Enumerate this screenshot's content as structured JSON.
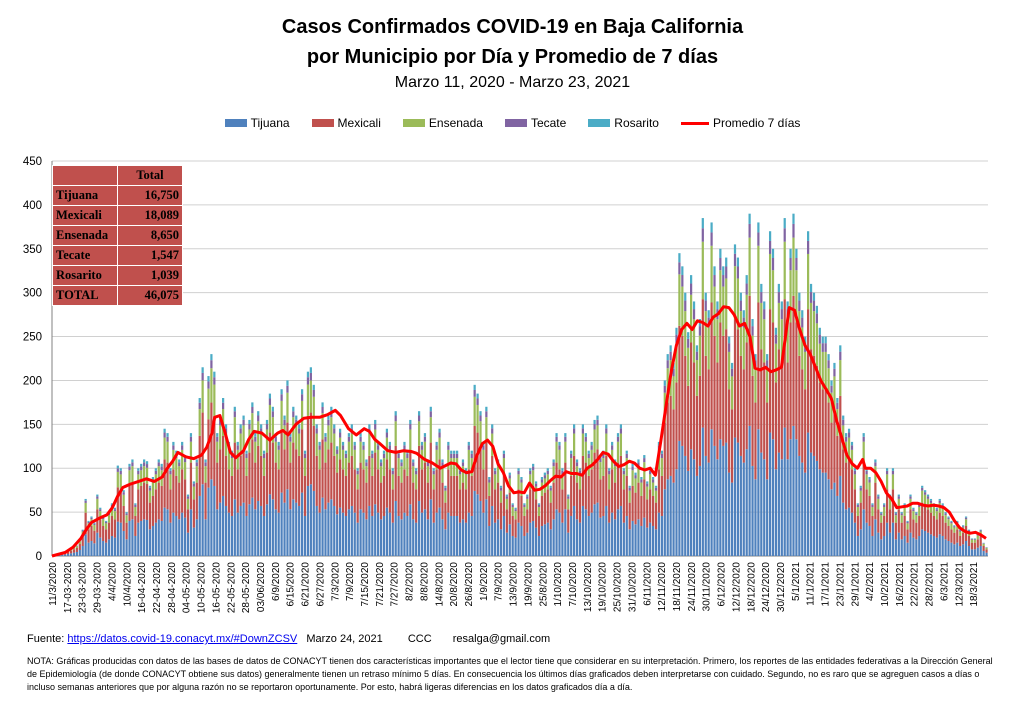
{
  "chart_data": {
    "type": "bar",
    "title_line1": "Casos Confirmados COVID-19 en Baja California",
    "title_line2": "por Municipio por Día y Promedio de 7 días",
    "subtitle": "Marzo 11, 2020  - Marzo 23, 2021",
    "ylim": [
      0,
      450
    ],
    "yticks": [
      "0",
      "50",
      "100",
      "150",
      "200",
      "250",
      "300",
      "350",
      "400",
      "450"
    ],
    "grid": true,
    "legend_position": "top",
    "series": [
      {
        "name": "Tijuana",
        "color": "#4f81bd"
      },
      {
        "name": "Mexicali",
        "color": "#c0504d"
      },
      {
        "name": "Ensenada",
        "color": "#9bbb59"
      },
      {
        "name": "Tecate",
        "color": "#8064a2"
      },
      {
        "name": "Rosarito",
        "color": "#4bacc6"
      },
      {
        "name": "Promedio 7 días",
        "color": "#ff0000",
        "type": "line"
      }
    ],
    "x_tick_labels": [
      "11/3/2020",
      "17-03-2020",
      "23-03-2020",
      "29-03-2020",
      "4/4/2020",
      "10/4/2020",
      "16-04-2020",
      "22-04-2020",
      "28-04-2020",
      "04-05-2020",
      "10-05-2020",
      "16-05-2020",
      "22-05-2020",
      "28-05-2020",
      "03/06/2020",
      "6/9/2020",
      "6/15/2020",
      "6/21/2020",
      "6/27/2020",
      "7/3/2020",
      "7/9/2020",
      "7/15/2020",
      "7/21/2020",
      "7/27/2020",
      "8/2/2020",
      "8/8/2020",
      "14/8/2020",
      "20/8/2020",
      "26/8/2020",
      "1/9/2020",
      "7/9/2020",
      "13/9/2020",
      "19/9/2020",
      "25/8/2020",
      "1/10/2020",
      "7/10/2020",
      "13/10/2020",
      "19/10/2020",
      "25/10/2020",
      "31/10/2020",
      "6/11/2020",
      "12/11/2020",
      "18/11/2020",
      "24/11/2020",
      "30/11/2020",
      "6/12/2020",
      "12/12/2020",
      "18/12/2020",
      "24/12/2020",
      "30/12/2020",
      "5/1/2021",
      "11/1/2021",
      "17/1/2021",
      "23/1/2021",
      "29/1/2021",
      "4/2/2021",
      "10/2/2021",
      "16/2/2021",
      "22/2/2021",
      "28/2/2021",
      "6/3/2021",
      "12/3/2021",
      "18/3/2021"
    ],
    "daily_totals": [
      0,
      2,
      3,
      4,
      5,
      6,
      8,
      10,
      12,
      18,
      30,
      65,
      40,
      45,
      38,
      70,
      55,
      45,
      40,
      50,
      60,
      55,
      103,
      100,
      75,
      50,
      105,
      110,
      60,
      100,
      105,
      110,
      108,
      80,
      90,
      100,
      110,
      105,
      145,
      140,
      100,
      130,
      120,
      110,
      130,
      115,
      70,
      140,
      85,
      110,
      180,
      215,
      110,
      205,
      230,
      210,
      140,
      160,
      180,
      150,
      130,
      120,
      170,
      130,
      150,
      160,
      120,
      155,
      175,
      140,
      165,
      150,
      120,
      155,
      185,
      170,
      140,
      130,
      190,
      160,
      200,
      140,
      170,
      160,
      150,
      190,
      120,
      210,
      215,
      195,
      150,
      130,
      175,
      140,
      160,
      170,
      150,
      125,
      145,
      130,
      120,
      140,
      150,
      130,
      100,
      140,
      130,
      110,
      150,
      120,
      155,
      130,
      110,
      120,
      145,
      130,
      100,
      165,
      120,
      110,
      130,
      120,
      155,
      110,
      100,
      165,
      130,
      140,
      110,
      170,
      100,
      130,
      145,
      110,
      80,
      130,
      120,
      120,
      120,
      100,
      110,
      100,
      130,
      120,
      195,
      185,
      165,
      130,
      170,
      90,
      150,
      100,
      110,
      80,
      120,
      70,
      95,
      60,
      55,
      100,
      90,
      60,
      70,
      100,
      105,
      85,
      60,
      90,
      95,
      100,
      80,
      110,
      140,
      130,
      100,
      140,
      70,
      120,
      150,
      110,
      100,
      150,
      140,
      120,
      130,
      155,
      160,
      115,
      120,
      150,
      100,
      130,
      110,
      140,
      150,
      100,
      120,
      80,
      105,
      95,
      110,
      90,
      115,
      85,
      100,
      90,
      80,
      130,
      120,
      200,
      230,
      240,
      220,
      260,
      345,
      330,
      300,
      255,
      320,
      290,
      240,
      270,
      385,
      300,
      280,
      380,
      330,
      290,
      350,
      330,
      340,
      250,
      220,
      355,
      340,
      300,
      280,
      320,
      390,
      270,
      230,
      380,
      310,
      290,
      230,
      370,
      350,
      260,
      310,
      290,
      385,
      290,
      350,
      390,
      350,
      300,
      280,
      250,
      370,
      310,
      300,
      285,
      260,
      250,
      250,
      230,
      200,
      220,
      180,
      240,
      160,
      140,
      145,
      130,
      100,
      60,
      80,
      140,
      100,
      90,
      60,
      110,
      70,
      50,
      60,
      100,
      70,
      100,
      50,
      70,
      50,
      60,
      40,
      70,
      55,
      50,
      60,
      80,
      75,
      70,
      65,
      60,
      55,
      65,
      60,
      50,
      45,
      40,
      35,
      40,
      30,
      35,
      45,
      30,
      20,
      20,
      25,
      30,
      15,
      10
    ],
    "rolling_avg_points": [
      [
        0,
        0
      ],
      [
        10,
        4
      ],
      [
        16,
        10
      ],
      [
        22,
        20
      ],
      [
        26,
        30
      ],
      [
        30,
        38
      ],
      [
        36,
        43
      ],
      [
        42,
        47
      ],
      [
        46,
        55
      ],
      [
        50,
        68
      ],
      [
        54,
        78
      ],
      [
        60,
        82
      ],
      [
        66,
        85
      ],
      [
        72,
        88
      ],
      [
        78,
        85
      ],
      [
        84,
        90
      ],
      [
        88,
        100
      ],
      [
        92,
        108
      ],
      [
        96,
        118
      ],
      [
        102,
        113
      ],
      [
        108,
        111
      ],
      [
        114,
        115
      ],
      [
        118,
        124
      ],
      [
        122,
        140
      ],
      [
        124,
        158
      ],
      [
        128,
        160
      ],
      [
        132,
        140
      ],
      [
        136,
        118
      ],
      [
        140,
        112
      ],
      [
        146,
        120
      ],
      [
        150,
        133
      ],
      [
        154,
        142
      ],
      [
        160,
        140
      ],
      [
        166,
        132
      ],
      [
        172,
        140
      ],
      [
        176,
        143
      ],
      [
        180,
        138
      ],
      [
        186,
        150
      ],
      [
        192,
        157
      ],
      [
        198,
        158
      ],
      [
        204,
        158
      ],
      [
        210,
        161
      ],
      [
        216,
        166
      ],
      [
        220,
        160
      ],
      [
        226,
        145
      ],
      [
        232,
        138
      ],
      [
        238,
        145
      ],
      [
        242,
        142
      ],
      [
        246,
        133
      ],
      [
        250,
        128
      ],
      [
        256,
        120
      ],
      [
        262,
        118
      ],
      [
        268,
        120
      ],
      [
        274,
        119
      ],
      [
        278,
        117
      ],
      [
        284,
        110
      ],
      [
        290,
        106
      ],
      [
        296,
        100
      ],
      [
        300,
        103
      ],
      [
        304,
        106
      ],
      [
        308,
        105
      ],
      [
        312,
        98
      ],
      [
        316,
        95
      ],
      [
        320,
        96
      ],
      [
        324,
        115
      ],
      [
        328,
        128
      ],
      [
        332,
        132
      ],
      [
        336,
        125
      ],
      [
        340,
        105
      ],
      [
        344,
        95
      ],
      [
        348,
        80
      ],
      [
        352,
        72
      ],
      [
        356,
        73
      ],
      [
        360,
        72
      ],
      [
        364,
        83
      ],
      [
        368,
        75
      ],
      [
        372,
        76
      ],
      [
        376,
        80
      ],
      [
        380,
        86
      ],
      [
        384,
        91
      ],
      [
        388,
        90
      ],
      [
        392,
        96
      ],
      [
        396,
        94
      ],
      [
        400,
        94
      ],
      [
        404,
        92
      ],
      [
        408,
        100
      ],
      [
        412,
        104
      ],
      [
        416,
        110
      ],
      [
        420,
        118
      ],
      [
        424,
        116
      ],
      [
        428,
        108
      ],
      [
        432,
        102
      ],
      [
        436,
        104
      ],
      [
        440,
        108
      ],
      [
        444,
        106
      ],
      [
        448,
        100
      ],
      [
        452,
        98
      ],
      [
        456,
        100
      ],
      [
        460,
        92
      ],
      [
        464,
        130
      ],
      [
        468,
        170
      ],
      [
        472,
        210
      ],
      [
        476,
        240
      ],
      [
        480,
        258
      ],
      [
        484,
        265
      ],
      [
        488,
        258
      ],
      [
        492,
        268
      ],
      [
        496,
        266
      ],
      [
        500,
        262
      ],
      [
        504,
        272
      ],
      [
        508,
        276
      ],
      [
        512,
        284
      ],
      [
        516,
        283
      ],
      [
        520,
        275
      ],
      [
        524,
        262
      ],
      [
        528,
        265
      ],
      [
        532,
        250
      ],
      [
        536,
        214
      ],
      [
        540,
        212
      ],
      [
        544,
        215
      ],
      [
        548,
        210
      ],
      [
        552,
        212
      ],
      [
        556,
        215
      ],
      [
        560,
        260
      ],
      [
        562,
        283
      ],
      [
        566,
        280
      ],
      [
        570,
        258
      ],
      [
        574,
        240
      ],
      [
        578,
        230
      ],
      [
        582,
        215
      ],
      [
        586,
        200
      ],
      [
        590,
        190
      ],
      [
        594,
        180
      ],
      [
        598,
        155
      ],
      [
        602,
        135
      ],
      [
        606,
        115
      ],
      [
        610,
        105
      ],
      [
        614,
        100
      ],
      [
        618,
        110
      ],
      [
        620,
        100
      ],
      [
        624,
        100
      ],
      [
        628,
        95
      ],
      [
        632,
        85
      ],
      [
        636,
        72
      ],
      [
        640,
        65
      ],
      [
        644,
        55
      ],
      [
        648,
        56
      ],
      [
        652,
        57
      ],
      [
        656,
        60
      ],
      [
        660,
        60
      ],
      [
        664,
        58
      ],
      [
        668,
        57
      ],
      [
        672,
        58
      ],
      [
        676,
        57
      ],
      [
        680,
        55
      ],
      [
        684,
        50
      ],
      [
        688,
        40
      ],
      [
        692,
        32
      ],
      [
        696,
        28
      ],
      [
        700,
        26
      ],
      [
        704,
        27
      ],
      [
        708,
        24
      ],
      [
        712,
        20
      ]
    ]
  },
  "totals_table": {
    "header": "Total",
    "rows": [
      {
        "label": "Tijuana",
        "value": "16,750"
      },
      {
        "label": "Mexicali",
        "value": "18,089"
      },
      {
        "label": "Ensenada",
        "value": "8,650"
      },
      {
        "label": "Tecate",
        "value": "1,547"
      },
      {
        "label": "Rosarito",
        "value": "1,039"
      },
      {
        "label": "TOTAL",
        "value": "46,075"
      }
    ]
  },
  "footer": {
    "source_label": "Fuente:",
    "source_link": "https://datos.covid-19.conacyt.mx/#DownZCSV",
    "date": "Marzo 24, 2021",
    "ccc": "CCC",
    "email": "resalga@gmail.com",
    "note": "NOTA: Gráficas producidas con datos de las bases de datos de CONACYT tienen dos características importantes que el lector tiene que considerar en su interpretación. Primero, los reportes de las entidades federativas a la Dirección General de Epidemiología (de donde CONACYT obtiene sus datos) generalmente tienen un retraso mínimo 5 días. En consecuencia los últimos días graficados deben interpretarse con cuidado. Segundo, no es raro que se agreguen casos a días o incluso semanas anteriores que por alguna razón no se reportaron oportunamente. Por esto, habrá ligeras diferencias en los datos graficados día a día."
  }
}
